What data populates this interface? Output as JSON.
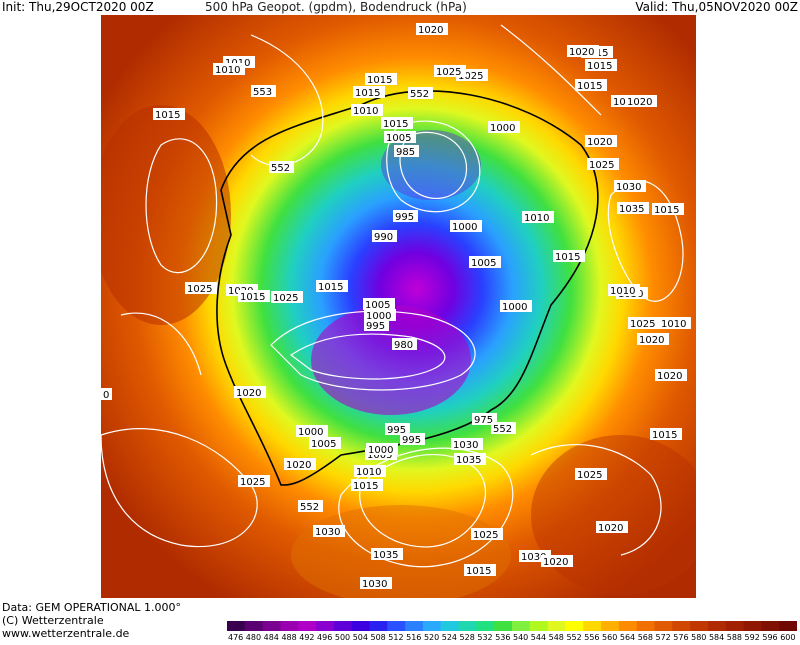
{
  "header": {
    "init": "Init: Thu,29OCT2020 00Z",
    "title": "500 hPa Geopot. (gpdm), Bodendruck (hPa)",
    "valid": "Valid: Thu,05NOV2020 00Z"
  },
  "footer": {
    "line1": "Data: GEM OPERATIONAL 1.000°",
    "line2": "(C) Wetterzentrale",
    "line3": "www.wetterzentrale.de"
  },
  "legend": {
    "ticks": [
      "476",
      "480",
      "484",
      "488",
      "492",
      "496",
      "500",
      "504",
      "508",
      "512",
      "516",
      "520",
      "524",
      "528",
      "532",
      "536",
      "540",
      "544",
      "548",
      "552",
      "556",
      "560",
      "564",
      "568",
      "572",
      "576",
      "580",
      "584",
      "588",
      "592",
      "596",
      "600"
    ],
    "colors": [
      "#3a0050",
      "#5a0070",
      "#7a0090",
      "#9a00b0",
      "#b000c8",
      "#8a00d0",
      "#6000d8",
      "#3c00e0",
      "#2a20f0",
      "#2a50ff",
      "#2a80ff",
      "#2aaaff",
      "#20c8e0",
      "#20d8b0",
      "#20e080",
      "#40e040",
      "#80f040",
      "#b0f820",
      "#e0f820",
      "#ffff00",
      "#ffd800",
      "#ffb000",
      "#ff8c00",
      "#f07000",
      "#e05a00",
      "#d04800",
      "#c03800",
      "#b02c00",
      "#a02000",
      "#901800",
      "#801000",
      "#700800"
    ]
  },
  "map": {
    "pressure_labels": [
      "1020",
      "1010",
      "1015",
      "1010",
      "553",
      "1015",
      "1015",
      "1010",
      "552",
      "1025",
      "1015",
      "1005",
      "1000",
      "985",
      "1020",
      "552",
      "1025",
      "1030",
      "1035",
      "995",
      "1000",
      "1015",
      "990",
      "1010",
      "1005",
      "1015",
      "1020",
      "1025",
      "1015",
      "1015",
      "1025",
      "1005",
      "1000",
      "1000",
      "1030",
      "1025",
      "995",
      "980",
      "1020",
      "1020",
      "1020",
      "975",
      "995",
      "1000",
      "1005",
      "1005",
      "1000",
      "995",
      "1015",
      "552",
      "1030",
      "1035",
      "1010",
      "1015",
      "1020",
      "1025",
      "1025",
      "1030",
      "1035",
      "1030",
      "1025",
      "552",
      "1020",
      "1015",
      "1025",
      "1020",
      "1015",
      "1015",
      "1020",
      "1025",
      "1015",
      "1020",
      "1010",
      "1010",
      "1030",
      "1020",
      "0"
    ]
  }
}
